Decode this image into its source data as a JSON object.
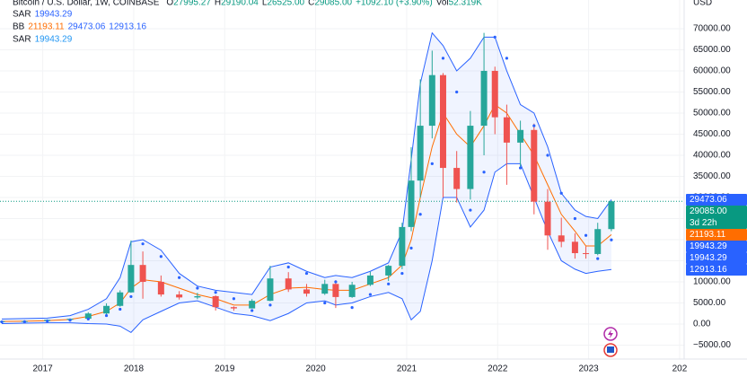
{
  "chart_data": {
    "type": "candlestick",
    "title": "Bitcoin / U.S. Dollar, 1W, COINBASE",
    "ohlc_legend": [
      {
        "label": "O",
        "value": "27995.27"
      },
      {
        "label": "H",
        "value": "29190.04"
      },
      {
        "label": "L",
        "value": "26525.00"
      },
      {
        "label": "C",
        "value": "29085.00"
      }
    ],
    "change": "+1092.10 (+3.90%)",
    "volume": {
      "label": "Vol",
      "value": "52.319K"
    },
    "indicators": [
      {
        "name": "SAR",
        "values": [
          "19943.29"
        ],
        "colors": [
          "#2962ff"
        ]
      },
      {
        "name": "BB",
        "values": [
          "21193.11",
          "29473.06",
          "12913.16"
        ],
        "colors": [
          "#ff6d00",
          "#2962ff",
          "#2962ff"
        ]
      },
      {
        "name": "SAR",
        "values": [
          "19943.29"
        ],
        "colors": [
          "#2196f3"
        ]
      }
    ],
    "y_unit": "USD",
    "x": [
      2016.55,
      2016.8,
      2017.05,
      2017.3,
      2017.5,
      2017.7,
      2017.85,
      2017.97,
      2018.1,
      2018.3,
      2018.5,
      2018.7,
      2018.9,
      2019.1,
      2019.3,
      2019.5,
      2019.7,
      2019.9,
      2020.1,
      2020.22,
      2020.4,
      2020.6,
      2020.8,
      2020.95,
      2021.05,
      2021.15,
      2021.28,
      2021.4,
      2021.55,
      2021.7,
      2021.85,
      2021.97,
      2022.1,
      2022.25,
      2022.4,
      2022.55,
      2022.7,
      2022.85,
      2022.97,
      2023.1,
      2023.25
    ],
    "open": [
      600,
      670,
      700,
      1000,
      1250,
      2500,
      4300,
      7500,
      14000,
      10000,
      7000,
      6300,
      6600,
      4000,
      3700,
      5500,
      10800,
      8200,
      7200,
      9500,
      6400,
      9300,
      11500,
      13800,
      23000,
      34000,
      47000,
      59000,
      37000,
      32000,
      47000,
      60000,
      49000,
      43000,
      46000,
      29000,
      21000,
      19500,
      16800,
      16600,
      22500
    ],
    "high": [
      700,
      760,
      1100,
      1350,
      2800,
      4900,
      8000,
      19800,
      17200,
      11500,
      7800,
      7400,
      6800,
      4200,
      5900,
      13800,
      12300,
      9500,
      10500,
      10400,
      10000,
      12400,
      14000,
      24000,
      41900,
      58000,
      64800,
      59500,
      41000,
      50500,
      69000,
      61000,
      52000,
      48200,
      47500,
      32000,
      25200,
      21500,
      18400,
      24000,
      29190
    ],
    "low": [
      560,
      600,
      720,
      900,
      1200,
      2000,
      4100,
      7400,
      6000,
      6500,
      5800,
      5900,
      3200,
      3150,
      3700,
      5400,
      7600,
      6500,
      6900,
      3800,
      6200,
      9000,
      10200,
      13000,
      22000,
      30000,
      44000,
      30000,
      28800,
      29500,
      40000,
      45000,
      33000,
      37000,
      26000,
      17600,
      18200,
      15500,
      15500,
      16300,
      22000
    ],
    "close": [
      670,
      700,
      1000,
      1250,
      2500,
      4300,
      7500,
      14000,
      10000,
      7000,
      6300,
      6600,
      4000,
      3700,
      5500,
      10800,
      8200,
      7200,
      9500,
      6400,
      9300,
      11500,
      13800,
      23000,
      34000,
      47000,
      59000,
      37000,
      32000,
      47000,
      60000,
      49000,
      43000,
      46000,
      29000,
      21000,
      19500,
      16800,
      16600,
      22500,
      29085
    ],
    "bb_upper": [
      1200,
      1300,
      1400,
      2000,
      3500,
      6000,
      11000,
      19500,
      20000,
      17500,
      12000,
      9000,
      8000,
      7500,
      7000,
      13500,
      14500,
      12500,
      11000,
      11500,
      11000,
      12500,
      14500,
      22000,
      39000,
      57000,
      69000,
      66000,
      60000,
      63000,
      68000,
      68000,
      60000,
      52000,
      50000,
      42000,
      31000,
      27000,
      25500,
      25000,
      29473.06
    ],
    "bb_middle": [
      600,
      650,
      800,
      1100,
      1800,
      3000,
      5000,
      8500,
      10500,
      10000,
      8500,
      7000,
      6000,
      4500,
      4500,
      7000,
      8500,
      8700,
      8200,
      8000,
      8000,
      9500,
      11000,
      14000,
      20000,
      30000,
      42000,
      50000,
      45000,
      42000,
      47000,
      52000,
      50000,
      45000,
      40000,
      33000,
      26000,
      22000,
      18500,
      18500,
      21193.11
    ],
    "bb_lower": [
      100,
      200,
      300,
      300,
      100,
      0,
      -500,
      -2000,
      1000,
      3000,
      5000,
      5500,
      4000,
      2500,
      2000,
      800,
      2500,
      5000,
      5500,
      4500,
      5000,
      6500,
      7500,
      6000,
      1000,
      3000,
      15000,
      30000,
      30000,
      23000,
      27000,
      36000,
      38000,
      38000,
      30000,
      22000,
      15000,
      13000,
      12000,
      12500,
      12913.16
    ],
    "sar": [
      500,
      550,
      700,
      900,
      1200,
      2000,
      3500,
      6500,
      19000,
      16000,
      11000,
      8500,
      7500,
      6000,
      3200,
      4500,
      13500,
      12000,
      5000,
      10000,
      3900,
      7000,
      9500,
      12000,
      18000,
      26000,
      38000,
      63000,
      55000,
      27000,
      36000,
      68000,
      63000,
      37000,
      47000,
      40000,
      31000,
      25000,
      21000,
      15500,
      19943.29
    ],
    "up_color": "#26a69a",
    "down_color": "#ef5350",
    "bb_color": "#2962ff",
    "bb_middle_color": "#ff6d00",
    "sar_color": "#2962ff",
    "xlim": [
      2016.53,
      2024.05
    ],
    "xticks": [
      2017,
      2018,
      2019,
      2020,
      2021,
      2022,
      2023,
      {
        "value": 2024,
        "label": "202"
      }
    ],
    "ylim": [
      -8300,
      76800
    ],
    "yticks": [
      {
        "value": -5000,
        "label": "−5000.00"
      },
      {
        "value": 0,
        "label": "0.00"
      },
      {
        "value": 5000,
        "label": "5000.00"
      },
      {
        "value": 10000,
        "label": "10000.00"
      },
      {
        "value": 15000,
        "label": "15000.00"
      },
      {
        "value": 20000,
        "label": "20000.00"
      },
      {
        "value": 25000,
        "label": "25000.00"
      },
      {
        "value": 30000,
        "label": "30000.00"
      },
      {
        "value": 35000,
        "label": "35000.00"
      },
      {
        "value": 40000,
        "label": "40000.00"
      },
      {
        "value": 45000,
        "label": "45000.00"
      },
      {
        "value": 50000,
        "label": "50000.00"
      },
      {
        "value": 55000,
        "label": "55000.00"
      },
      {
        "value": 60000,
        "label": "60000.00"
      },
      {
        "value": 65000,
        "label": "65000.00"
      },
      {
        "value": 70000,
        "label": "70000.00"
      }
    ],
    "price_labels": [
      {
        "value": 29473.06,
        "color": "#2962ff"
      },
      {
        "value": 29085,
        "label": "29085.00",
        "sub": "3d 22h",
        "color": "#089981"
      },
      {
        "value": 21193.11,
        "color": "#ff6d00"
      },
      {
        "value": 19943.29,
        "color": "#2962ff"
      },
      {
        "value": 19943.29,
        "color": "#2962ff"
      },
      {
        "value": 12913.16,
        "color": "#2962ff"
      }
    ]
  }
}
